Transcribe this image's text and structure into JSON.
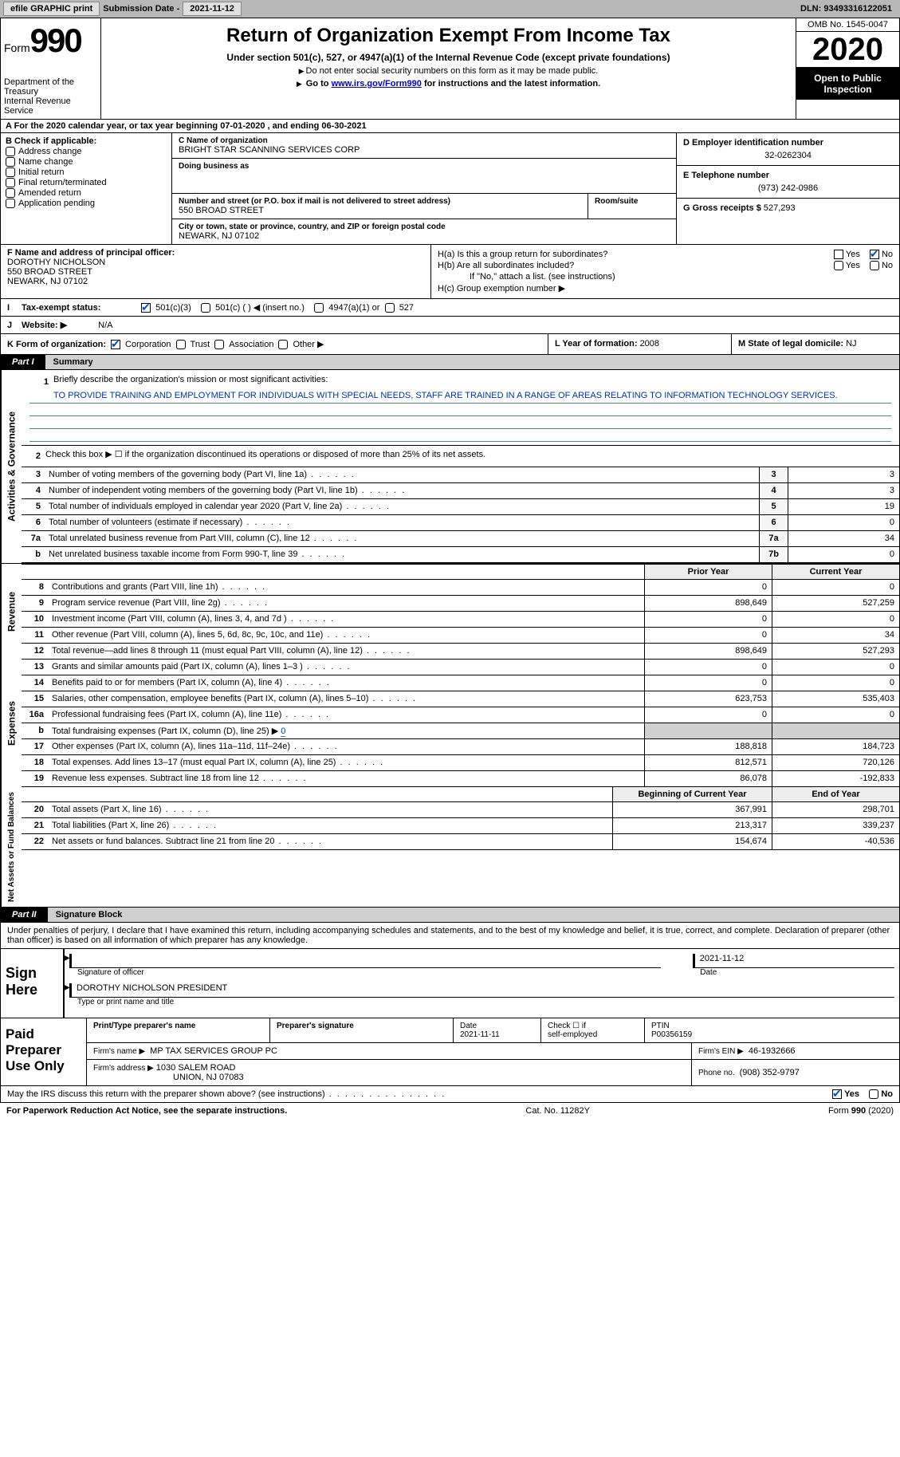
{
  "topbar": {
    "efile_btn": "efile GRAPHIC print",
    "subdate_label": "Submission Date - ",
    "subdate": "2021-11-12",
    "dln_label": "DLN: ",
    "dln": "93493316122051"
  },
  "header": {
    "form_word": "Form",
    "form_num": "990",
    "dept": "Department of the Treasury\nInternal Revenue Service",
    "title": "Return of Organization Exempt From Income Tax",
    "subtitle": "Under section 501(c), 527, or 4947(a)(1) of the Internal Revenue Code (except private foundations)",
    "instr1": "Do not enter social security numbers on this form as it may be made public.",
    "instr2_a": "Go to ",
    "instr2_link": "www.irs.gov/Form990",
    "instr2_b": " for instructions and the latest information.",
    "omb": "OMB No. 1545-0047",
    "year": "2020",
    "open": "Open to Public Inspection"
  },
  "row_a": "A For the 2020 calendar year, or tax year beginning 07-01-2020   , and ending 06-30-2021",
  "section_b": {
    "hdr": "B Check if applicable:",
    "opts": [
      "Address change",
      "Name change",
      "Initial return",
      "Final return/terminated",
      "Amended return",
      "Application pending"
    ]
  },
  "section_c": {
    "name_label": "C Name of organization",
    "name": "BRIGHT STAR SCANNING SERVICES CORP",
    "dba_label": "Doing business as",
    "addr_label": "Number and street (or P.O. box if mail is not delivered to street address)",
    "addr": "550 BROAD STREET",
    "room_label": "Room/suite",
    "city_label": "City or town, state or province, country, and ZIP or foreign postal code",
    "city": "NEWARK, NJ  07102"
  },
  "section_d": {
    "label": "D Employer identification number",
    "val": "32-0262304"
  },
  "section_e": {
    "label": "E Telephone number",
    "val": "(973) 242-0986"
  },
  "section_g": {
    "label": "G Gross receipts $ ",
    "val": "527,293"
  },
  "section_f": {
    "label": "F Name and address of principal officer:",
    "name": "DOROTHY NICHOLSON",
    "addr1": "550 BROAD STREET",
    "addr2": "NEWARK, NJ  07102"
  },
  "section_h": {
    "a": "H(a)  Is this a group return for subordinates?",
    "b": "H(b)  Are all subordinates included?",
    "note": "If \"No,\" attach a list. (see instructions)",
    "c": "H(c)  Group exemption number ▶",
    "yes": "Yes",
    "no": "No"
  },
  "tax_status": {
    "lbl_i": "I",
    "lbl": "Tax-exempt status:",
    "o1": "501(c)(3)",
    "o2": "501(c) (  ) ◀ (insert no.)",
    "o3": "4947(a)(1) or",
    "o4": "527"
  },
  "website": {
    "lbl_j": "J",
    "lbl": "Website: ▶",
    "val": "N/A"
  },
  "row_k": {
    "lbl": "K Form of organization:",
    "opts": [
      "Corporation",
      "Trust",
      "Association",
      "Other ▶"
    ]
  },
  "row_l": {
    "lbl": "L Year of formation: ",
    "val": "2008"
  },
  "row_m": {
    "lbl": "M State of legal domicile: ",
    "val": "NJ"
  },
  "part1": {
    "tab": "Part I",
    "title": "Summary"
  },
  "q1": {
    "num": "1",
    "text": "Briefly describe the organization's mission or most significant activities:",
    "desc": "TO PROVIDE TRAINING AND EMPLOYMENT FOR INDIVIDUALS WITH SPECIAL NEEDS, STAFF ARE TRAINED IN A RANGE OF AREAS RELATING TO INFORMATION TECHNOLOGY SERVICES."
  },
  "q2": {
    "num": "2",
    "text": "Check this box ▶ ☐ if the organization discontinued its operations or disposed of more than 25% of its net assets."
  },
  "rows_gov": [
    {
      "n": "3",
      "t": "Number of voting members of the governing body (Part VI, line 1a)",
      "box": "3",
      "v": "3"
    },
    {
      "n": "4",
      "t": "Number of independent voting members of the governing body (Part VI, line 1b)",
      "box": "4",
      "v": "3"
    },
    {
      "n": "5",
      "t": "Total number of individuals employed in calendar year 2020 (Part V, line 2a)",
      "box": "5",
      "v": "19"
    },
    {
      "n": "6",
      "t": "Total number of volunteers (estimate if necessary)",
      "box": "6",
      "v": "0"
    },
    {
      "n": "7a",
      "t": "Total unrelated business revenue from Part VIII, column (C), line 12",
      "box": "7a",
      "v": "34"
    },
    {
      "n": "b",
      "t": "Net unrelated business taxable income from Form 990-T, line 39",
      "box": "7b",
      "v": "0"
    }
  ],
  "col_hdrs": {
    "prior": "Prior Year",
    "curr": "Current Year"
  },
  "side_labels": {
    "gov": "Activities & Governance",
    "rev": "Revenue",
    "exp": "Expenses",
    "net": "Net Assets or Fund Balances"
  },
  "revenue": [
    {
      "n": "8",
      "t": "Contributions and grants (Part VIII, line 1h)",
      "p": "0",
      "c": "0"
    },
    {
      "n": "9",
      "t": "Program service revenue (Part VIII, line 2g)",
      "p": "898,649",
      "c": "527,259"
    },
    {
      "n": "10",
      "t": "Investment income (Part VIII, column (A), lines 3, 4, and 7d )",
      "p": "0",
      "c": "0"
    },
    {
      "n": "11",
      "t": "Other revenue (Part VIII, column (A), lines 5, 6d, 8c, 9c, 10c, and 11e)",
      "p": "0",
      "c": "34"
    },
    {
      "n": "12",
      "t": "Total revenue—add lines 8 through 11 (must equal Part VIII, column (A), line 12)",
      "p": "898,649",
      "c": "527,293"
    }
  ],
  "expenses": [
    {
      "n": "13",
      "t": "Grants and similar amounts paid (Part IX, column (A), lines 1–3 )",
      "p": "0",
      "c": "0"
    },
    {
      "n": "14",
      "t": "Benefits paid to or for members (Part IX, column (A), line 4)",
      "p": "0",
      "c": "0"
    },
    {
      "n": "15",
      "t": "Salaries, other compensation, employee benefits (Part IX, column (A), lines 5–10)",
      "p": "623,753",
      "c": "535,403"
    },
    {
      "n": "16a",
      "t": "Professional fundraising fees (Part IX, column (A), line 11e)",
      "p": "0",
      "c": "0"
    }
  ],
  "line16b": {
    "n": "b",
    "t": "Total fundraising expenses (Part IX, column (D), line 25) ▶",
    "v": "0"
  },
  "expenses2": [
    {
      "n": "17",
      "t": "Other expenses (Part IX, column (A), lines 11a–11d, 11f–24e)",
      "p": "188,818",
      "c": "184,723"
    },
    {
      "n": "18",
      "t": "Total expenses. Add lines 13–17 (must equal Part IX, column (A), line 25)",
      "p": "812,571",
      "c": "720,126"
    },
    {
      "n": "19",
      "t": "Revenue less expenses. Subtract line 18 from line 12",
      "p": "86,078",
      "c": "-192,833"
    }
  ],
  "col_hdrs2": {
    "prior": "Beginning of Current Year",
    "curr": "End of Year"
  },
  "netassets": [
    {
      "n": "20",
      "t": "Total assets (Part X, line 16)",
      "p": "367,991",
      "c": "298,701"
    },
    {
      "n": "21",
      "t": "Total liabilities (Part X, line 26)",
      "p": "213,317",
      "c": "339,237"
    },
    {
      "n": "22",
      "t": "Net assets or fund balances. Subtract line 21 from line 20",
      "p": "154,674",
      "c": "-40,536"
    }
  ],
  "part2": {
    "tab": "Part II",
    "title": "Signature Block"
  },
  "sig_intro": "Under penalties of perjury, I declare that I have examined this return, including accompanying schedules and statements, and to the best of my knowledge and belief, it is true, correct, and complete. Declaration of preparer (other than officer) is based on all information of which preparer has any knowledge.",
  "sign": {
    "left": "Sign Here",
    "sig_label": "Signature of officer",
    "date": "2021-11-12",
    "date_label": "Date",
    "name": "DOROTHY NICHOLSON  PRESIDENT",
    "name_label": "Type or print name and title"
  },
  "paid": {
    "left": "Paid Preparer Use Only",
    "h1": "Print/Type preparer's name",
    "h2": "Preparer's signature",
    "h3": "Date",
    "h3v": "2021-11-11",
    "h4a": "Check ☐ if",
    "h4b": "self-employed",
    "h5": "PTIN",
    "h5v": "P00356159",
    "firm_name_lbl": "Firm's name    ▶",
    "firm_name": "MP TAX SERVICES GROUP PC",
    "firm_ein_lbl": "Firm's EIN ▶",
    "firm_ein": "46-1932666",
    "firm_addr_lbl": "Firm's address ▶",
    "firm_addr1": "1030 SALEM ROAD",
    "firm_addr2": "UNION, NJ  07083",
    "phone_lbl": "Phone no. ",
    "phone": "(908) 352-9797"
  },
  "discuss": {
    "text": "May the IRS discuss this return with the preparer shown above? (see instructions)",
    "yes": "Yes",
    "no": "No"
  },
  "footer": {
    "left": "For Paperwork Reduction Act Notice, see the separate instructions.",
    "mid": "Cat. No. 11282Y",
    "right": "Form 990 (2020)"
  }
}
